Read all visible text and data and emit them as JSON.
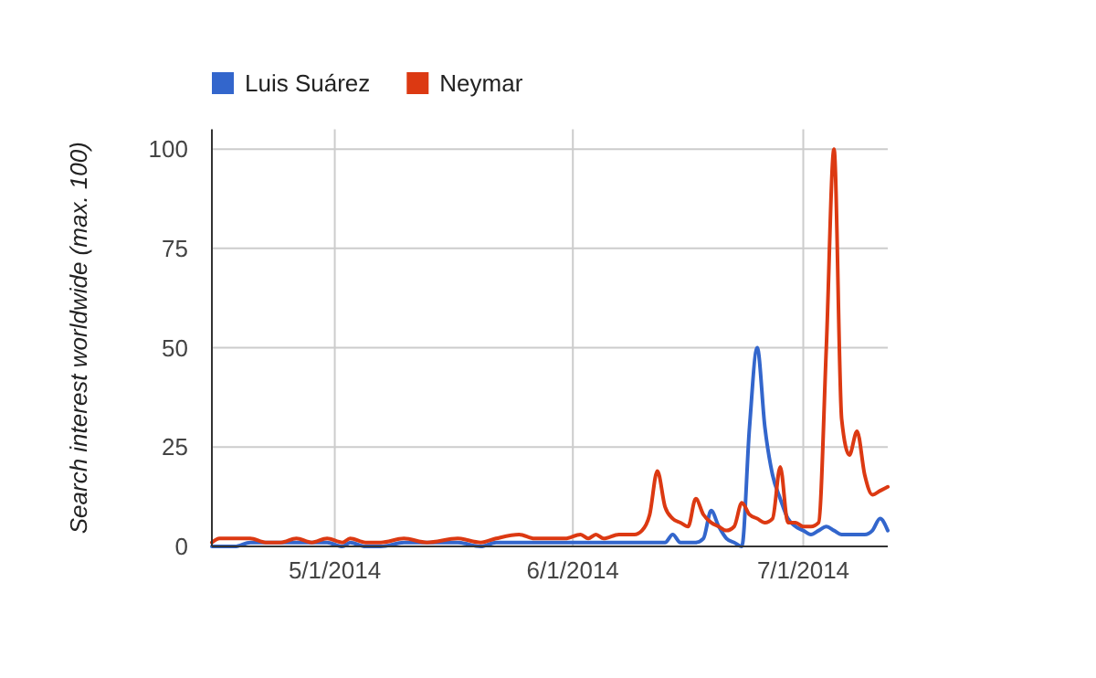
{
  "chart_data": {
    "type": "line",
    "ylabel": "Search interest worldwide (max. 100)",
    "x": [
      "2014-04-15",
      "2014-04-16",
      "2014-04-18",
      "2014-04-20",
      "2014-04-22",
      "2014-04-24",
      "2014-04-26",
      "2014-04-28",
      "2014-04-30",
      "2014-05-02",
      "2014-05-03",
      "2014-05-05",
      "2014-05-07",
      "2014-05-10",
      "2014-05-13",
      "2014-05-17",
      "2014-05-20",
      "2014-05-22",
      "2014-05-25",
      "2014-05-27",
      "2014-05-31",
      "2014-06-02",
      "2014-06-03",
      "2014-06-04",
      "2014-06-05",
      "2014-06-07",
      "2014-06-09",
      "2014-06-10",
      "2014-06-11",
      "2014-06-12",
      "2014-06-13",
      "2014-06-14",
      "2014-06-15",
      "2014-06-16",
      "2014-06-17",
      "2014-06-18",
      "2014-06-19",
      "2014-06-20",
      "2014-06-21",
      "2014-06-22",
      "2014-06-23",
      "2014-06-24",
      "2014-06-25",
      "2014-06-26",
      "2014-06-27",
      "2014-06-28",
      "2014-06-29",
      "2014-06-30",
      "2014-07-01",
      "2014-07-02",
      "2014-07-03",
      "2014-07-04",
      "2014-07-05",
      "2014-07-06",
      "2014-07-07",
      "2014-07-08",
      "2014-07-09",
      "2014-07-10",
      "2014-07-11",
      "2014-07-12"
    ],
    "series": [
      {
        "name": "Luis Suárez",
        "color": "#3366cc",
        "values": [
          0,
          0,
          0,
          1,
          1,
          1,
          1,
          1,
          1,
          0,
          1,
          0,
          0,
          1,
          1,
          1,
          0,
          1,
          1,
          1,
          1,
          1,
          1,
          1,
          1,
          1,
          1,
          1,
          1,
          1,
          1,
          3,
          1,
          1,
          1,
          2,
          9,
          5,
          2,
          1,
          0,
          30,
          50,
          30,
          18,
          12,
          7,
          5,
          4,
          3,
          4,
          5,
          4,
          3,
          3,
          3,
          3,
          4,
          7,
          4
        ]
      },
      {
        "name": "Neymar",
        "color": "#dc3912",
        "values": [
          1,
          2,
          2,
          2,
          1,
          1,
          2,
          1,
          2,
          1,
          2,
          1,
          1,
          2,
          1,
          2,
          1,
          2,
          3,
          2,
          2,
          3,
          2,
          3,
          2,
          3,
          3,
          4,
          8,
          19,
          10,
          7,
          6,
          5,
          12,
          8,
          6,
          5,
          4,
          5,
          11,
          8,
          7,
          6,
          7,
          20,
          6,
          6,
          5,
          5,
          6,
          50,
          100,
          32,
          23,
          29,
          18,
          13,
          14,
          15
        ]
      }
    ],
    "xlim": [
      "2014-04-15",
      "2014-07-12"
    ],
    "xticks": [
      {
        "value": "2014-05-01",
        "label": "5/1/2014"
      },
      {
        "value": "2014-06-01",
        "label": "6/1/2014"
      },
      {
        "value": "2014-07-01",
        "label": "7/1/2014"
      }
    ],
    "ylim": [
      0,
      105
    ],
    "yticks": [
      0,
      25,
      50,
      75,
      100
    ],
    "grid": true,
    "legend": "top left",
    "line_style": "solid"
  }
}
